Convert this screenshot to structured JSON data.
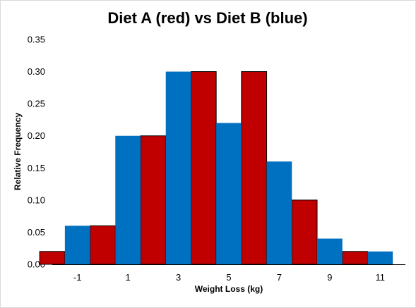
{
  "chart_data": {
    "type": "bar",
    "title": "Diet A (red) vs Diet B (blue)",
    "xlabel": "Weight Loss (kg)",
    "ylabel": "Relative Frequency",
    "ylim": [
      0,
      0.35
    ],
    "yticks": [
      "0.00",
      "0.05",
      "0.10",
      "0.15",
      "0.20",
      "0.25",
      "0.30",
      "0.35"
    ],
    "xticks": [
      "-1",
      "1",
      "3",
      "5",
      "7",
      "9",
      "11"
    ],
    "xtick_values": [
      -1,
      1,
      3,
      5,
      7,
      9,
      11
    ],
    "xlim": [
      -2,
      12
    ],
    "grid": false,
    "legend": "none",
    "series": [
      {
        "color": "#c00000",
        "points": [
          {
            "x": -2,
            "value": 0.02
          },
          {
            "x": 0,
            "value": 0.06
          },
          {
            "x": 2,
            "value": 0.2
          },
          {
            "x": 4,
            "value": 0.3
          },
          {
            "x": 6,
            "value": 0.3
          },
          {
            "x": 8,
            "value": 0.1
          },
          {
            "x": 10,
            "value": 0.02
          }
        ]
      },
      {
        "color": "#0070c0",
        "points": [
          {
            "x": -1,
            "value": 0.06
          },
          {
            "x": 1,
            "value": 0.2
          },
          {
            "x": 3,
            "value": 0.3
          },
          {
            "x": 5,
            "value": 0.22
          },
          {
            "x": 7,
            "value": 0.16
          },
          {
            "x": 9,
            "value": 0.04
          },
          {
            "x": 11,
            "value": 0.02
          }
        ]
      }
    ]
  }
}
